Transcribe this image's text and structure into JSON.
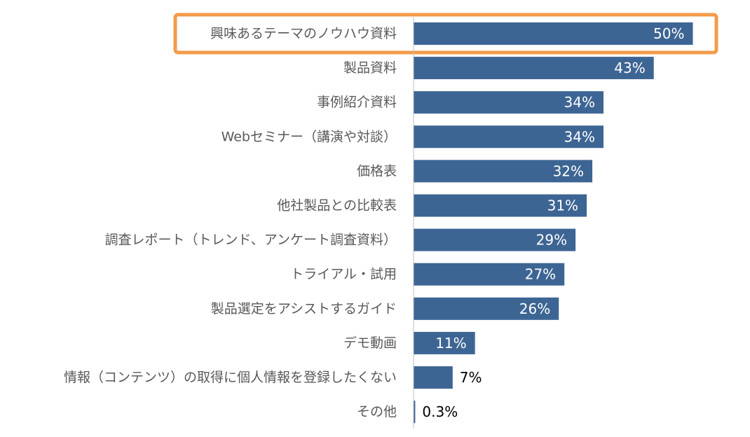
{
  "chart_data": {
    "type": "bar",
    "orientation": "horizontal",
    "categories": [
      "興味あるテーマのノウハウ資料",
      "製品資料",
      "事例紹介資料",
      "Webセミナー（講演や対談）",
      "価格表",
      "他社製品との比較表",
      "調査レポート（トレンド、アンケート調査資料）",
      "トライアル・試用",
      "製品選定をアシストするガイド",
      "デモ動画",
      "情報（コンテンツ）の取得に個人情報を登録したくない",
      "その他"
    ],
    "values": [
      50,
      43,
      34,
      34,
      32,
      31,
      29,
      27,
      26,
      11,
      7,
      0.3
    ],
    "value_labels": [
      "50%",
      "43%",
      "34%",
      "34%",
      "32%",
      "31%",
      "29%",
      "27%",
      "26%",
      "11%",
      "7%",
      "0.3%"
    ],
    "unit": "%",
    "xlim": [
      0,
      60
    ],
    "grid": false,
    "highlight_index": 0,
    "colors": {
      "bar": "#3d6594",
      "highlight_border": "#f39b4b",
      "label_inside": "#ffffff",
      "label_outside": "#000000",
      "category_text": "#595959",
      "axis": "#bfbfbf"
    }
  }
}
